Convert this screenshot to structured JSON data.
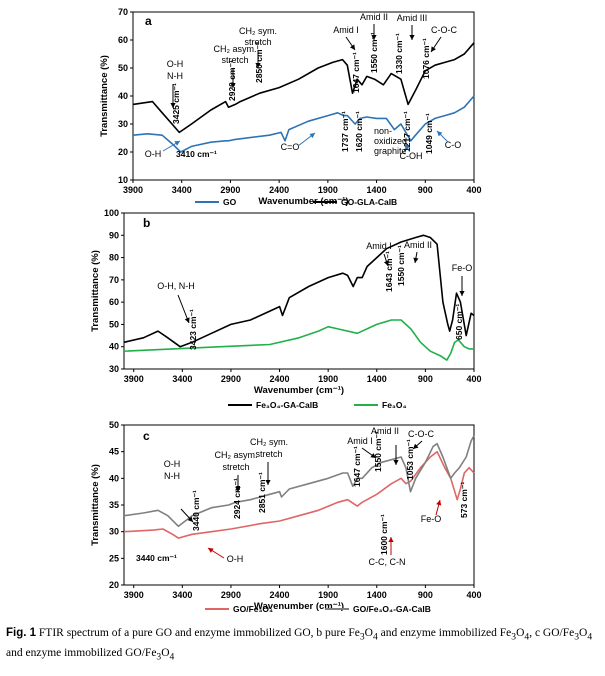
{
  "caption": {
    "lead": "Fig. 1",
    "text": "FTIR spectrum of a pure GO and enzyme immobilized GO, b pure Fe3O4 and enzyme immobilized Fe3O4, c GO/Fe3O4 and enzyme immobilized GO/Fe3O4"
  },
  "chart_data": [
    {
      "panel": "a",
      "type": "line",
      "xlabel": "Wavenumber (cm⁻¹)",
      "ylabel": "Transmittance (%)",
      "xlim": [
        3900,
        400
      ],
      "ylim": [
        10,
        70
      ],
      "xticks": [
        3900,
        3400,
        2900,
        2400,
        1900,
        1400,
        900,
        400
      ],
      "yticks": [
        10,
        20,
        30,
        40,
        50,
        60,
        70
      ],
      "legend_position": "bottom",
      "series": [
        {
          "name": "GO",
          "color": "#2e74b5",
          "points": [
            [
              3900,
              26
            ],
            [
              3750,
              26.5
            ],
            [
              3600,
              26
            ],
            [
              3500,
              23
            ],
            [
              3410,
              20
            ],
            [
              3300,
              22
            ],
            [
              3100,
              23.5
            ],
            [
              2950,
              24
            ],
            [
              2920,
              24
            ],
            [
              2850,
              24.5
            ],
            [
              2500,
              26
            ],
            [
              2380,
              27
            ],
            [
              2340,
              24
            ],
            [
              2300,
              28
            ],
            [
              2100,
              31
            ],
            [
              1900,
              33
            ],
            [
              1800,
              34
            ],
            [
              1737,
              33
            ],
            [
              1700,
              33
            ],
            [
              1620,
              30
            ],
            [
              1570,
              32
            ],
            [
              1500,
              32.5
            ],
            [
              1400,
              32
            ],
            [
              1300,
              32
            ],
            [
              1217,
              28
            ],
            [
              1150,
              30
            ],
            [
              1049,
              24
            ],
            [
              1000,
              26
            ],
            [
              900,
              30
            ],
            [
              800,
              32
            ],
            [
              700,
              33
            ],
            [
              600,
              34
            ],
            [
              500,
              36
            ],
            [
              400,
              40
            ]
          ]
        },
        {
          "name": "GO-GLA-CalB",
          "color": "#000000",
          "points": [
            [
              3900,
              37
            ],
            [
              3700,
              38
            ],
            [
              3600,
              34
            ],
            [
              3500,
              30
            ],
            [
              3425,
              27
            ],
            [
              3300,
              30
            ],
            [
              3100,
              35
            ],
            [
              2950,
              38
            ],
            [
              2920,
              36
            ],
            [
              2850,
              37
            ],
            [
              2800,
              38
            ],
            [
              2600,
              41
            ],
            [
              2400,
              43
            ],
            [
              2200,
              46
            ],
            [
              2000,
              50
            ],
            [
              1850,
              52
            ],
            [
              1750,
              53
            ],
            [
              1700,
              51
            ],
            [
              1647,
              41
            ],
            [
              1600,
              46
            ],
            [
              1550,
              44
            ],
            [
              1500,
              47
            ],
            [
              1420,
              46
            ],
            [
              1330,
              44
            ],
            [
              1250,
              48
            ],
            [
              1150,
              46
            ],
            [
              1076,
              37
            ],
            [
              1000,
              42
            ],
            [
              900,
              49
            ],
            [
              800,
              51
            ],
            [
              700,
              52
            ],
            [
              600,
              53
            ],
            [
              500,
              55
            ],
            [
              400,
              59
            ]
          ]
        }
      ],
      "annotations": [
        {
          "text": "O-H",
          "series": "GO-GLA-CalB"
        },
        {
          "text": "N-H",
          "series": "GO-GLA-CalB"
        },
        {
          "text": "3425 cm⁻¹",
          "x": 3425
        },
        {
          "text": "CH₂ asym.",
          "x": 2920
        },
        {
          "text": "stretch",
          "x": 2920
        },
        {
          "text": "2920 cm⁻¹",
          "x": 2920
        },
        {
          "text": "CH₂ sym.",
          "x": 2850
        },
        {
          "text": "stretch",
          "x": 2850
        },
        {
          "text": "2850 cm⁻¹",
          "x": 2850
        },
        {
          "text": "Amid I",
          "x": 1647
        },
        {
          "text": "1647 cm⁻¹",
          "x": 1647
        },
        {
          "text": "Amid II",
          "x": 1550
        },
        {
          "text": "1550 cm⁻¹",
          "x": 1550
        },
        {
          "text": "Amid III",
          "x": 1330
        },
        {
          "text": "1330 cm⁻¹",
          "x": 1330
        },
        {
          "text": "C-O-C",
          "x": 1076
        },
        {
          "text": "1076 cm⁻¹",
          "x": 1076
        },
        {
          "text": "O-H",
          "series": "GO"
        },
        {
          "text": "3410 cm⁻¹",
          "x": 3410
        },
        {
          "text": "C=O",
          "x": 1737
        },
        {
          "text": "1737 cm⁻¹",
          "x": 1737
        },
        {
          "text": "1620 cm⁻¹",
          "x": 1620
        },
        {
          "text": "non-",
          "x": 1620
        },
        {
          "text": "oxidized",
          "x": 1620
        },
        {
          "text": "graphite",
          "x": 1620
        },
        {
          "text": "1217 cm⁻¹",
          "x": 1217
        },
        {
          "text": "C-OH",
          "x": 1217
        },
        {
          "text": "1049 cm⁻¹",
          "x": 1049
        },
        {
          "text": "C-O",
          "x": 1049
        }
      ]
    },
    {
      "panel": "b",
      "type": "line",
      "xlabel": "Wavenumber (cm⁻¹)",
      "ylabel": "Transmittance (%)",
      "xlim": [
        4000,
        400
      ],
      "ylim": [
        30,
        100
      ],
      "xticks": [
        3900,
        3400,
        2900,
        2400,
        1900,
        1400,
        900,
        400
      ],
      "yticks": [
        30,
        40,
        50,
        60,
        70,
        80,
        90,
        100
      ],
      "legend_position": "bottom",
      "series": [
        {
          "name": "Fe₃O₄-GA-CalB",
          "color": "#000000",
          "points": [
            [
              4000,
              42
            ],
            [
              3800,
              44
            ],
            [
              3650,
              47
            ],
            [
              3550,
              44
            ],
            [
              3423,
              40
            ],
            [
              3300,
              42
            ],
            [
              3100,
              46
            ],
            [
              2900,
              50
            ],
            [
              2700,
              52
            ],
            [
              2500,
              56
            ],
            [
              2400,
              58
            ],
            [
              2370,
              54
            ],
            [
              2300,
              62
            ],
            [
              2100,
              67
            ],
            [
              1900,
              71
            ],
            [
              1750,
              73
            ],
            [
              1700,
              72
            ],
            [
              1643,
              67
            ],
            [
              1600,
              71
            ],
            [
              1550,
              71
            ],
            [
              1500,
              76
            ],
            [
              1400,
              80
            ],
            [
              1300,
              84
            ],
            [
              1150,
              87
            ],
            [
              1000,
              89
            ],
            [
              920,
              90
            ],
            [
              850,
              89
            ],
            [
              780,
              86
            ],
            [
              720,
              60
            ],
            [
              670,
              50
            ],
            [
              650,
              47
            ],
            [
              620,
              52
            ],
            [
              580,
              64
            ],
            [
              540,
              60
            ],
            [
              480,
              45
            ],
            [
              430,
              55
            ],
            [
              400,
              54
            ]
          ]
        },
        {
          "name": "Fe₃O₄",
          "color": "#22b04b",
          "points": [
            [
              4000,
              38
            ],
            [
              3500,
              39
            ],
            [
              3000,
              40
            ],
            [
              2500,
              41
            ],
            [
              2200,
              44
            ],
            [
              2000,
              47
            ],
            [
              1900,
              49
            ],
            [
              1800,
              48
            ],
            [
              1600,
              46
            ],
            [
              1400,
              50
            ],
            [
              1250,
              52
            ],
            [
              1150,
              52
            ],
            [
              1050,
              48
            ],
            [
              950,
              42
            ],
            [
              850,
              38
            ],
            [
              750,
              36
            ],
            [
              680,
              34
            ],
            [
              640,
              37
            ],
            [
              600,
              42
            ],
            [
              560,
              43
            ],
            [
              500,
              40
            ],
            [
              450,
              39
            ],
            [
              400,
              39
            ]
          ]
        }
      ],
      "annotations": [
        {
          "text": "O-H, N-H",
          "series": "Fe₃O₄-GA-CalB"
        },
        {
          "text": "3423 cm⁻¹",
          "x": 3423
        },
        {
          "text": "Amid I",
          "x": 1643
        },
        {
          "text": "1643 cm⁻¹",
          "x": 1643
        },
        {
          "text": "Amid II",
          "x": 1550
        },
        {
          "text": "1550 cm⁻¹",
          "x": 1550
        },
        {
          "text": "Fe-O",
          "x": 650
        },
        {
          "text": "650 cm⁻¹",
          "x": 650
        }
      ]
    },
    {
      "panel": "c",
      "type": "line",
      "xlabel": "Wavenumber (cm⁻¹)",
      "ylabel": "Transmittance (%)",
      "xlim": [
        4000,
        400
      ],
      "ylim": [
        20,
        50
      ],
      "xticks": [
        3900,
        3400,
        2900,
        2400,
        1900,
        1400,
        900,
        400
      ],
      "yticks": [
        20,
        25,
        30,
        35,
        40,
        45,
        50
      ],
      "legend_position": "bottom",
      "series": [
        {
          "name": "GO/Fe₃O₄",
          "color": "#e06666",
          "points": [
            [
              4000,
              30
            ],
            [
              3700,
              30.3
            ],
            [
              3600,
              30.5
            ],
            [
              3500,
              29.5
            ],
            [
              3440,
              28.8
            ],
            [
              3300,
              29.5
            ],
            [
              3100,
              30
            ],
            [
              2900,
              30.5
            ],
            [
              2600,
              31.5
            ],
            [
              2400,
              32
            ],
            [
              2200,
              33
            ],
            [
              2000,
              34
            ],
            [
              1800,
              35.5
            ],
            [
              1700,
              36
            ],
            [
              1600,
              34.8
            ],
            [
              1550,
              35.5
            ],
            [
              1400,
              37
            ],
            [
              1250,
              39
            ],
            [
              1150,
              40
            ],
            [
              1100,
              39
            ],
            [
              1050,
              39.5
            ],
            [
              950,
              42
            ],
            [
              850,
              44
            ],
            [
              780,
              45
            ],
            [
              700,
              42
            ],
            [
              640,
              40
            ],
            [
              573,
              36
            ],
            [
              540,
              38
            ],
            [
              500,
              41
            ],
            [
              450,
              42
            ],
            [
              400,
              41
            ]
          ]
        },
        {
          "name": "GO/Fe₃O₄-GA-CalB",
          "color": "#808080",
          "points": [
            [
              4000,
              33
            ],
            [
              3800,
              33.5
            ],
            [
              3650,
              34
            ],
            [
              3550,
              33
            ],
            [
              3440,
              31
            ],
            [
              3300,
              33
            ],
            [
              3100,
              34.5
            ],
            [
              2924,
              35
            ],
            [
              2851,
              35.5
            ],
            [
              2700,
              36
            ],
            [
              2500,
              37
            ],
            [
              2400,
              37.5
            ],
            [
              2380,
              36.5
            ],
            [
              2300,
              38
            ],
            [
              2100,
              39
            ],
            [
              1900,
              40
            ],
            [
              1750,
              41
            ],
            [
              1700,
              41
            ],
            [
              1647,
              38.5
            ],
            [
              1600,
              40
            ],
            [
              1550,
              40
            ],
            [
              1450,
              42
            ],
            [
              1350,
              43
            ],
            [
              1250,
              43.5
            ],
            [
              1150,
              44
            ],
            [
              1100,
              42
            ],
            [
              1053,
              37.5
            ],
            [
              1000,
              40
            ],
            [
              900,
              43
            ],
            [
              820,
              46
            ],
            [
              780,
              46.5
            ],
            [
              720,
              44
            ],
            [
              680,
              42
            ],
            [
              640,
              40
            ],
            [
              600,
              41
            ],
            [
              550,
              42
            ],
            [
              480,
              44
            ],
            [
              430,
              47
            ],
            [
              400,
              48
            ]
          ]
        }
      ],
      "annotations": [
        {
          "text": "O-H",
          "series": "GO/Fe₃O₄-GA-CalB"
        },
        {
          "text": "N-H",
          "series": "GO/Fe₃O₄-GA-CalB"
        },
        {
          "text": "3440 cm⁻¹",
          "x": 3440
        },
        {
          "text": "CH₂ asym.",
          "x": 2924
        },
        {
          "text": "stretch",
          "x": 2924
        },
        {
          "text": "2924 cm⁻¹",
          "x": 2924
        },
        {
          "text": "CH₂ sym.",
          "x": 2851
        },
        {
          "text": "stretch",
          "x": 2851
        },
        {
          "text": "2851 cm⁻¹",
          "x": 2851
        },
        {
          "text": "Amid I",
          "x": 1647
        },
        {
          "text": "1647 cm⁻¹",
          "x": 1647
        },
        {
          "text": "Amid II",
          "x": 1550
        },
        {
          "text": "1550 cm⁻¹",
          "x": 1550
        },
        {
          "text": "C-O-C",
          "x": 1053
        },
        {
          "text": "1053 cm⁻¹",
          "x": 1053
        },
        {
          "text": "3440 cm⁻¹",
          "x": 3440,
          "series": "GO/Fe₃O₄"
        },
        {
          "text": "O-H",
          "series": "GO/Fe₃O₄"
        },
        {
          "text": "1600 cm⁻¹",
          "x": 1600
        },
        {
          "text": "C-C, C-N",
          "x": 1600
        },
        {
          "text": "Fe-O",
          "x": 573
        },
        {
          "text": "573 cm⁻¹",
          "x": 573
        }
      ]
    }
  ]
}
